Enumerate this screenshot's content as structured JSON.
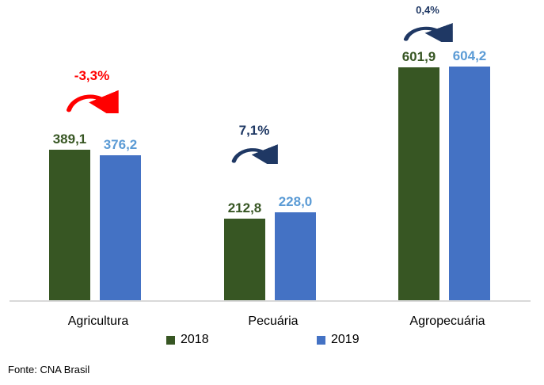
{
  "source": "Fonte: CNA Brasil",
  "legend": [
    {
      "label": "2018",
      "color": "#375623"
    },
    {
      "label": "2019",
      "color": "#4472C4"
    }
  ],
  "colors": {
    "bar_2018": "#375623",
    "bar_2019": "#4472C4",
    "label_2018": "#375623",
    "label_2019": "#5B9BD5",
    "negative_change": "#FF0000",
    "positive_change": "#1F3864",
    "axis_line": "#D9D9D9"
  },
  "chart_data": {
    "type": "bar",
    "categories": [
      "Agricultura",
      "Pecuária",
      "Agropecuária"
    ],
    "series": [
      {
        "name": "2018",
        "values": [
          389.1,
          212.8,
          601.9
        ],
        "color": "#375623",
        "label_color": "#375623"
      },
      {
        "name": "2019",
        "values": [
          376.2,
          228.0,
          604.2
        ],
        "color": "#4472C4",
        "label_color": "#5B9BD5"
      }
    ],
    "value_labels": [
      [
        "389,1",
        "376,2"
      ],
      [
        "212,8",
        "228,0"
      ],
      [
        "601,9",
        "604,2"
      ]
    ],
    "change_annotations": [
      {
        "label": "-3,3%",
        "color": "#FF0000"
      },
      {
        "label": "7,1%",
        "color": "#1F3864"
      },
      {
        "label": "0,4%",
        "color": "#1F3864"
      }
    ],
    "title": "",
    "xlabel": "",
    "ylabel": "",
    "ylim": [
      0,
      650
    ],
    "grid": false,
    "legend_position": "bottom"
  }
}
